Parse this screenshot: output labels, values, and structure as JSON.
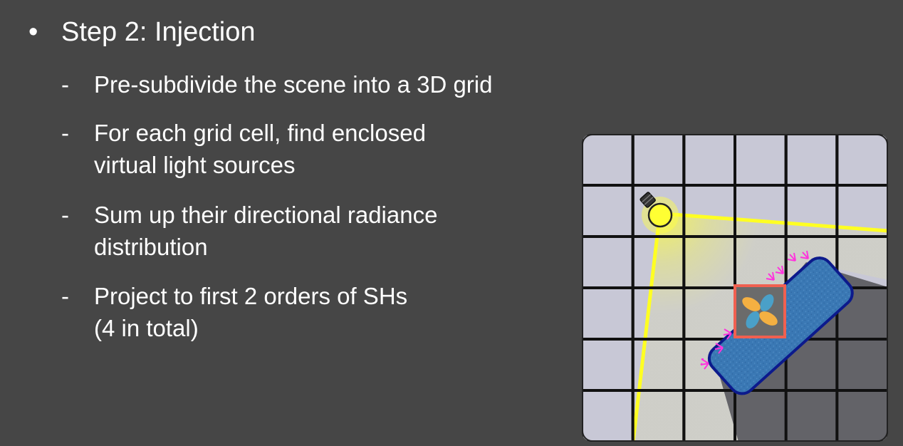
{
  "slide": {
    "bullet_symbol": "•",
    "heading": "Step 2: Injection",
    "sub_items": [
      {
        "dash": "-",
        "lines": [
          "Pre-subdivide the scene into a 3D grid"
        ]
      },
      {
        "dash": "-",
        "lines": [
          "For each grid cell, find enclosed",
          "virtual light sources"
        ]
      },
      {
        "dash": "-",
        "lines": [
          "Sum up their directional radiance",
          "distribution"
        ]
      },
      {
        "dash": "-",
        "lines": [
          "Project to first 2 orders of SHs",
          "(4 in total)"
        ]
      }
    ]
  },
  "figure": {
    "grid_columns": 6,
    "grid_rows": 6,
    "colors": {
      "cell": "#c8c8d6",
      "grid_line": "#111111",
      "light": "#ffff33",
      "shadow": "#5a5a5e",
      "occluder": "#3a78b4",
      "occluder_outline": "#0c1a8c",
      "highlight_cell": "#f06050",
      "vpl_arrows": "#ff33dd",
      "sh_lobe_orange": "#f4b042",
      "sh_lobe_blue": "#4aa0c8"
    },
    "icons": [
      "light-bulb-icon",
      "sh-lobes-icon"
    ]
  }
}
